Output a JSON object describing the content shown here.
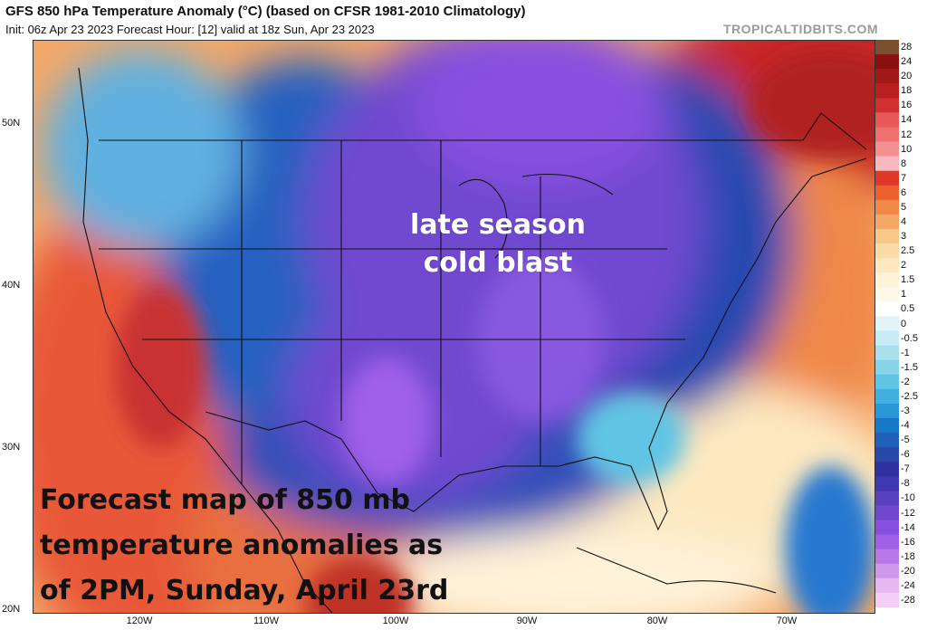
{
  "header": {
    "title": "GFS 850 hPa Temperature Anomaly (°C) (based on CFSR 1981-2010 Climatology)",
    "subtitle": "Init: 06z Apr 23 2023   Forecast Hour: [12]   valid at 18z Sun, Apr 23 2023",
    "brand": "TROPICALTIDBITS.COM"
  },
  "map": {
    "region": "Continental United States",
    "lat_labels": [
      "50N",
      "40N",
      "30N",
      "20N"
    ],
    "lon_labels": [
      "120W",
      "110W",
      "100W",
      "90W",
      "80W",
      "70W"
    ],
    "annotation": [
      "late season",
      "cold blast"
    ],
    "caption": [
      "Forecast map of 850 mb",
      "temperature anomalies as",
      "of 2PM, Sunday, April 23rd"
    ]
  },
  "colorbar": {
    "labels": [
      "28",
      "24",
      "20",
      "18",
      "16",
      "14",
      "12",
      "10",
      "8",
      "7",
      "6",
      "5",
      "4",
      "3",
      "2.5",
      "2",
      "1.5",
      "1",
      "0.5",
      "0",
      "-0.5",
      "-1",
      "-1.5",
      "-2",
      "-2.5",
      "-3",
      "-4",
      "-5",
      "-6",
      "-7",
      "-8",
      "-10",
      "-12",
      "-14",
      "-16",
      "-18",
      "-20",
      "-24",
      "-28"
    ],
    "colors": [
      "#7a5030",
      "#8a1010",
      "#a01818",
      "#b82020",
      "#d03030",
      "#e85858",
      "#f07070",
      "#f49090",
      "#f8b8c0",
      "#e03828",
      "#ec6030",
      "#f08848",
      "#f4a868",
      "#f8c888",
      "#fbdca8",
      "#fde8c0",
      "#fef2d8",
      "#fef8e8",
      "#ffffff",
      "#e0f4f8",
      "#c8ecf4",
      "#a8e0ec",
      "#88d4e8",
      "#60c4e4",
      "#40b0e0",
      "#2898d8",
      "#1878c8",
      "#2060b8",
      "#2848a8",
      "#3030a0",
      "#4038b0",
      "#5840c0",
      "#7048d0",
      "#8850e0",
      "#a060e8",
      "#b878e8",
      "#d098e8",
      "#e8b8f0",
      "#f4d0f4"
    ]
  }
}
